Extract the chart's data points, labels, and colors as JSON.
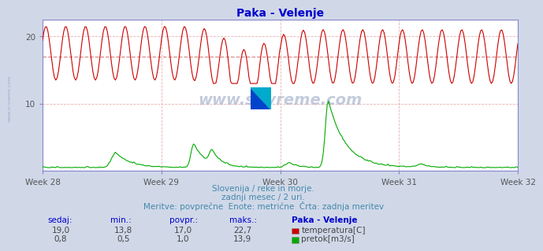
{
  "title": "Paka - Velenje",
  "title_color": "#0000cc",
  "bg_color": "#d0d8e8",
  "plot_bg_color": "#ffffff",
  "grid_color": "#e8b0b0",
  "x_tick_labels": [
    "Week 28",
    "Week 29",
    "Week 30",
    "Week 31",
    "Week 32"
  ],
  "x_tick_positions": [
    0,
    84,
    168,
    252,
    336
  ],
  "n_points": 360,
  "temp_avg": 17.0,
  "temp_color": "#cc0000",
  "flow_color": "#00aa00",
  "avg_line_color": "#dd8888",
  "ylim": [
    0,
    22.5
  ],
  "yticks": [
    10,
    20
  ],
  "subtitle1": "Slovenija / reke in morje.",
  "subtitle2": "zadnji mesec / 2 uri.",
  "subtitle3": "Meritve: povprečne  Enote: metrične  Črta: zadnja meritev",
  "subtitle_color": "#4488aa",
  "table_headers": [
    "sedaj:",
    "min.:",
    "povpr.:",
    "maks.:",
    "Paka - Velenje"
  ],
  "table_header_color": "#0000cc",
  "table_row1_vals": [
    "19,0",
    "13,8",
    "17,0",
    "22,7"
  ],
  "table_row2_vals": [
    "0,8",
    "0,5",
    "1,0",
    "13,9"
  ],
  "table_label1": "temperatura[C]",
  "table_label2": "pretok[m3/s]",
  "watermark": "www.si-vreme.com",
  "watermark_color": "#8899bb",
  "left_label": "www.si-vreme.com",
  "spine_color": "#8888cc",
  "axis_left_color": "#8888cc"
}
